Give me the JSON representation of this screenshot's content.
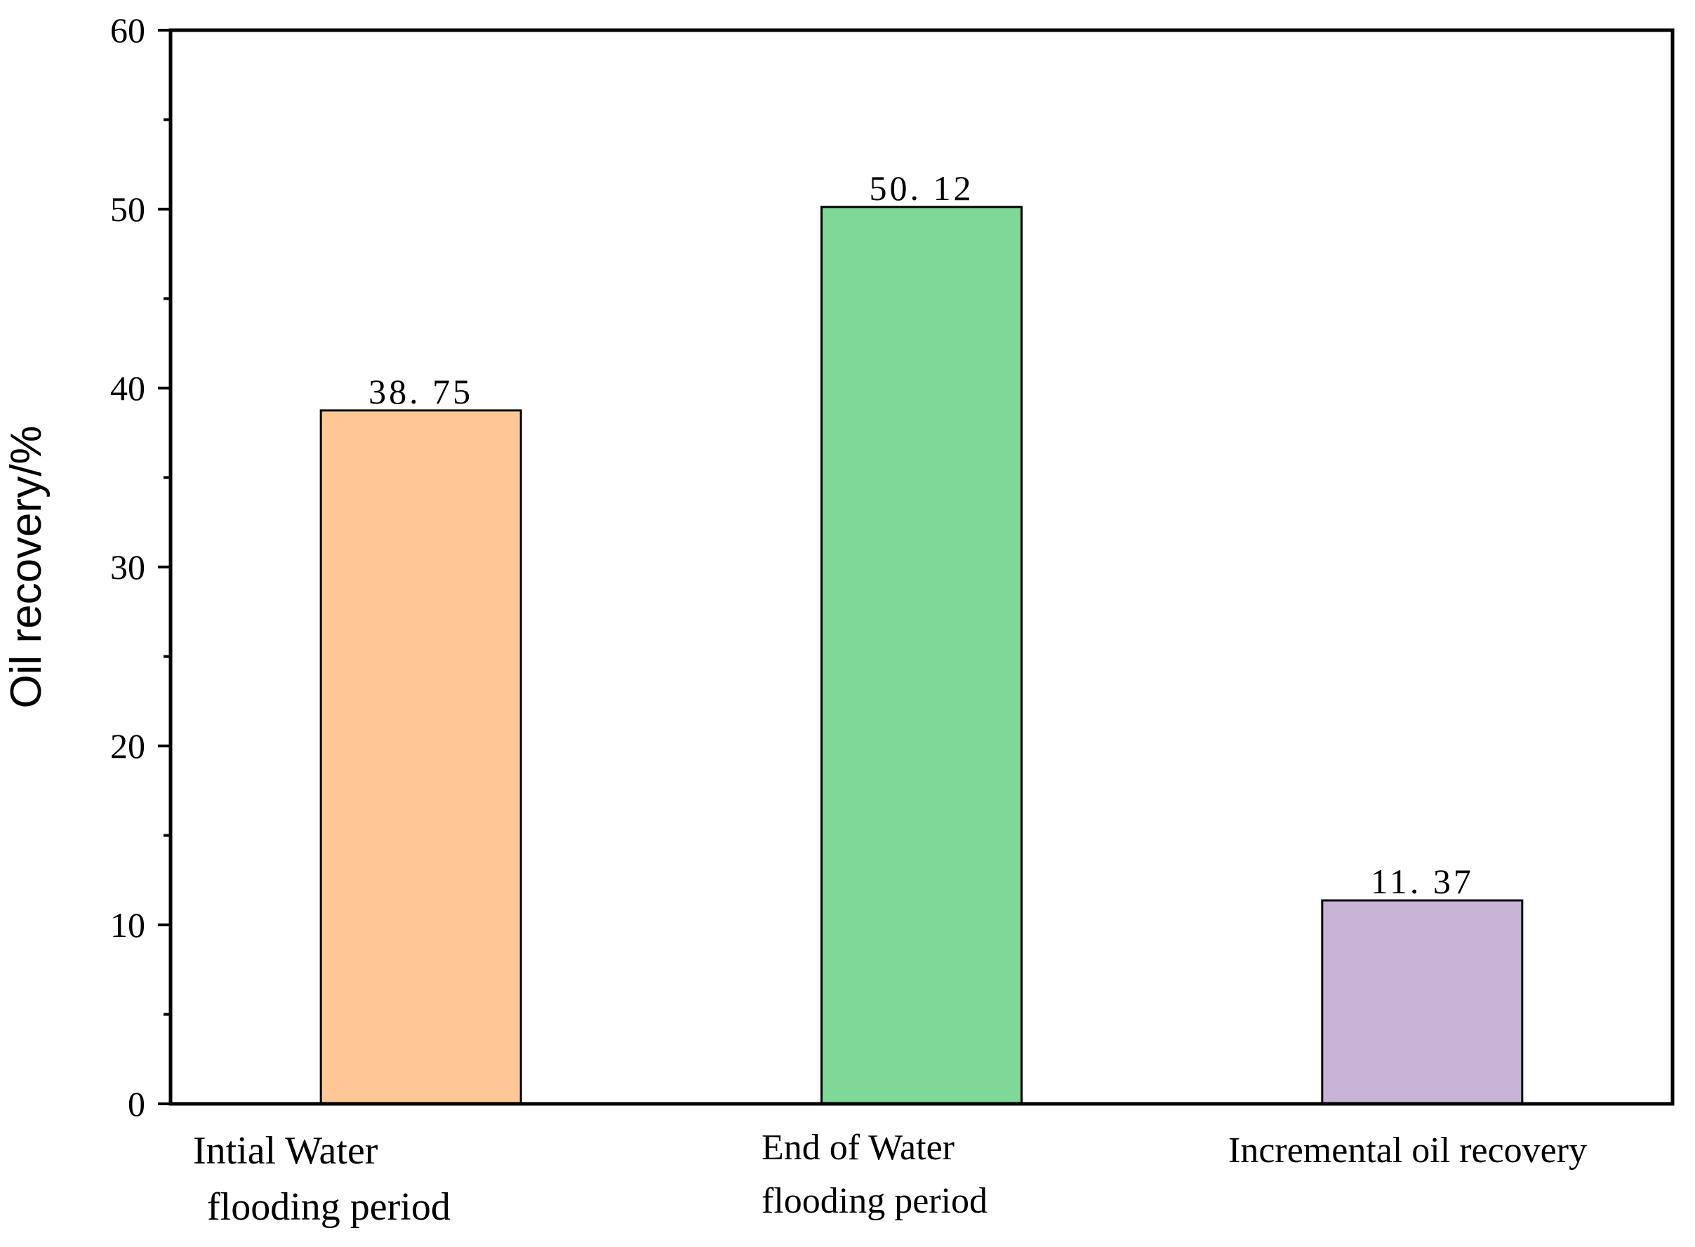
{
  "chart_data": {
    "type": "bar",
    "title": "",
    "xlabel": "",
    "ylabel": "Oil recovery/%",
    "ylim": [
      0,
      60
    ],
    "yticks": [
      0,
      10,
      20,
      30,
      40,
      50,
      60
    ],
    "yticks_labels": [
      "0",
      "10",
      "20",
      "30",
      "40",
      "50",
      "60"
    ],
    "minor_ytick_step": 5,
    "grid": false,
    "categories": [
      [
        "Intial Water",
        "flooding period"
      ],
      [
        "End of Water",
        "flooding period"
      ],
      [
        "Incremental oil recovery"
      ]
    ],
    "values": [
      38.75,
      50.12,
      11.37
    ],
    "value_labels": [
      "38. 75",
      "50. 12",
      "11. 37"
    ],
    "colors": [
      "#FEC896",
      "#80D898",
      "#C8B4D6"
    ]
  }
}
